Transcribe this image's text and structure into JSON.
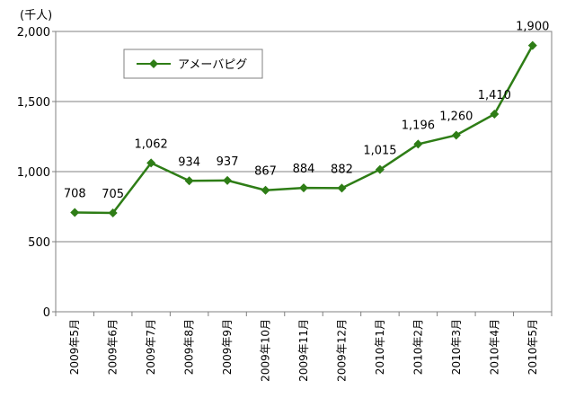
{
  "chart_data": {
    "type": "line",
    "ylabel": "(千人)",
    "ylim": [
      0,
      2000
    ],
    "yticks": [
      0,
      500,
      1000,
      1500,
      2000
    ],
    "ytick_labels": [
      "0",
      "500",
      "1,000",
      "1,500",
      "2,000"
    ],
    "grid": true,
    "legend_position": "top-left",
    "categories": [
      "2009年5月",
      "2009年6月",
      "2009年7月",
      "2009年8月",
      "2009年9月",
      "2009年10月",
      "2009年11月",
      "2009年12月",
      "2010年1月",
      "2010年2月",
      "2010年3月",
      "2010年4月",
      "2010年5月"
    ],
    "series": [
      {
        "name": "アメーバピグ",
        "color": "#2e7d16",
        "values": [
          708,
          705,
          1062,
          934,
          937,
          867,
          884,
          882,
          1015,
          1196,
          1260,
          1410,
          1900
        ],
        "value_labels": [
          "708",
          "705",
          "1,062",
          "934",
          "937",
          "867",
          "884",
          "882",
          "1,015",
          "1,196",
          "1,260",
          "1,410",
          "1,900"
        ]
      }
    ]
  }
}
